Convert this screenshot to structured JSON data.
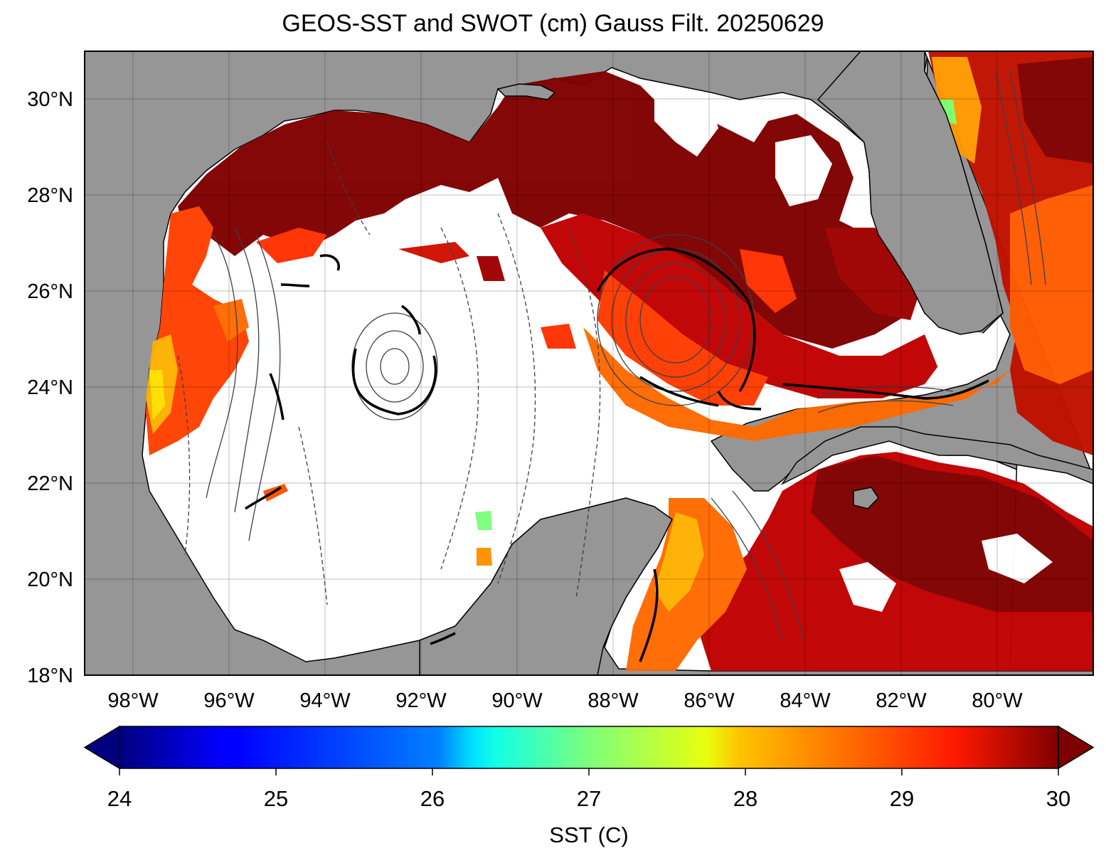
{
  "title": "GEOS-SST  and SWOT (cm) Gauss Filt. 20250629",
  "map": {
    "lat_labels": [
      "30°N",
      "28°N",
      "26°N",
      "24°N",
      "22°N",
      "20°N",
      "18°N"
    ],
    "lon_labels": [
      "98°W",
      "96°W",
      "94°W",
      "92°W",
      "90°W",
      "88°W",
      "86°W",
      "84°W",
      "82°W",
      "80°W"
    ],
    "land_color": "#969696",
    "no_data_color": "#ffffff"
  },
  "colorbar": {
    "label": "SST (C)",
    "ticks": [
      "24",
      "25",
      "26",
      "27",
      "28",
      "29",
      "30"
    ],
    "min": 24,
    "max": 30,
    "colormap": "jet",
    "extend": "both"
  }
}
